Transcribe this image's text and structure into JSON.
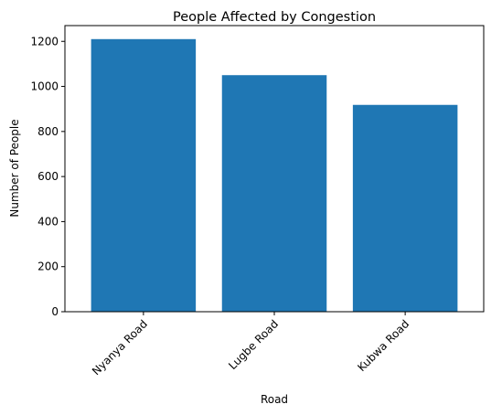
{
  "chart_data": {
    "type": "bar",
    "title": "People Affected by Congestion",
    "xlabel": "Road",
    "ylabel": "Number of People",
    "categories": [
      "Nyanya Road",
      "Lugbe Road",
      "Kubwa Road"
    ],
    "values": [
      1210,
      1050,
      918
    ],
    "ylim": [
      0,
      1270
    ],
    "yticks": [
      0,
      200,
      400,
      600,
      800,
      1000,
      1200
    ],
    "grid": false,
    "bar_color": "#1f77b4",
    "xtick_rotation_deg": 45
  }
}
